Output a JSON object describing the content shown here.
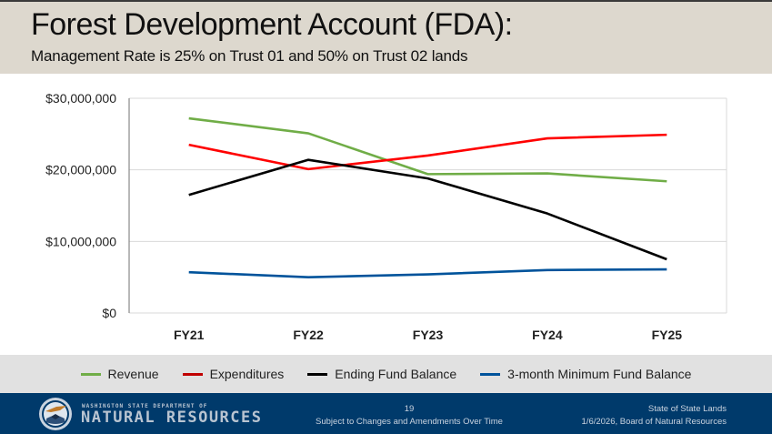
{
  "slide": {
    "title": "Forest Development Account (FDA):",
    "subtitle": "Management Rate is 25% on Trust 01 and 50% on Trust 02 lands"
  },
  "chart_data": {
    "type": "line",
    "title": "",
    "xlabel": "",
    "ylabel": "",
    "categories": [
      "FY21",
      "FY22",
      "FY23",
      "FY24",
      "FY25"
    ],
    "ylim": [
      0,
      30000000
    ],
    "yticks": [
      0,
      10000000,
      20000000,
      30000000
    ],
    "ytick_labels": [
      "$0",
      "$10,000,000",
      "$20,000,000",
      "$30,000,000"
    ],
    "grid": true,
    "legend_position": "bottom",
    "series": [
      {
        "name": "Revenue",
        "color": "#70ad47",
        "legend_color": "#70ad47",
        "values": [
          27200000,
          25100000,
          19400000,
          19500000,
          18400000
        ]
      },
      {
        "name": "Expenditures",
        "color": "#ff0000",
        "legend_color": "#c00000",
        "values": [
          23500000,
          20100000,
          22000000,
          24400000,
          24900000
        ]
      },
      {
        "name": "Ending Fund Balance",
        "color": "#000000",
        "legend_color": "#000000",
        "values": [
          16500000,
          21400000,
          18800000,
          13900000,
          7500000
        ]
      },
      {
        "name": "3-month Minimum Fund Balance",
        "color": "#00539b",
        "legend_color": "#00539b",
        "values": [
          5700000,
          5000000,
          5400000,
          6000000,
          6100000
        ]
      }
    ]
  },
  "footer": {
    "org_line1": "WASHINGTON STATE DEPARTMENT OF",
    "org_line2": "NATURAL RESOURCES",
    "page_number": "19",
    "disclaimer": "Subject to Changes and Amendments Over Time",
    "right_line1": "State of State Lands",
    "right_line2": "1/6/2026, Board of Natural Resources"
  }
}
